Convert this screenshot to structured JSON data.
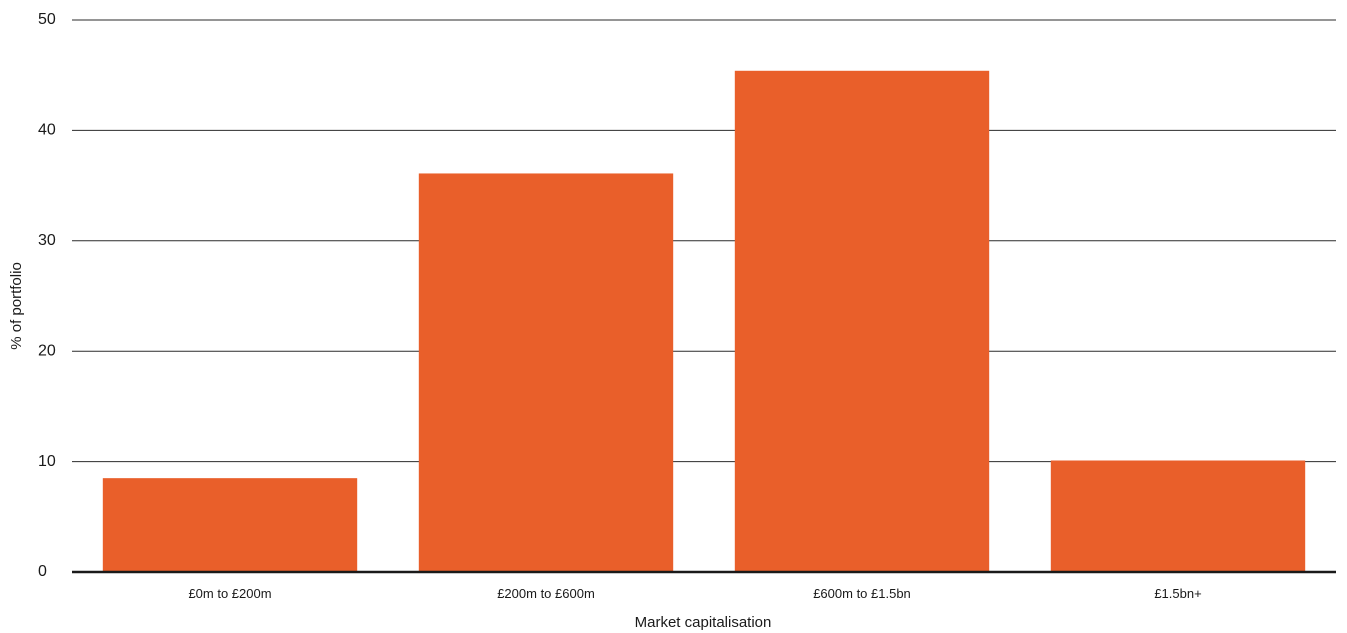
{
  "chart_data": {
    "type": "bar",
    "categories": [
      "£0m to £200m",
      "£200m to £600m",
      "£600m to £1.5bn",
      "£1.5bn+"
    ],
    "values": [
      8.5,
      36.1,
      45.4,
      10.1
    ],
    "xlabel": "Market capitalisation",
    "ylabel": "% of portfolio",
    "ylim": [
      0,
      50
    ],
    "yticks": [
      0,
      10,
      20,
      30,
      40,
      50
    ],
    "grid": true,
    "bar_color": "#E95F2A"
  }
}
